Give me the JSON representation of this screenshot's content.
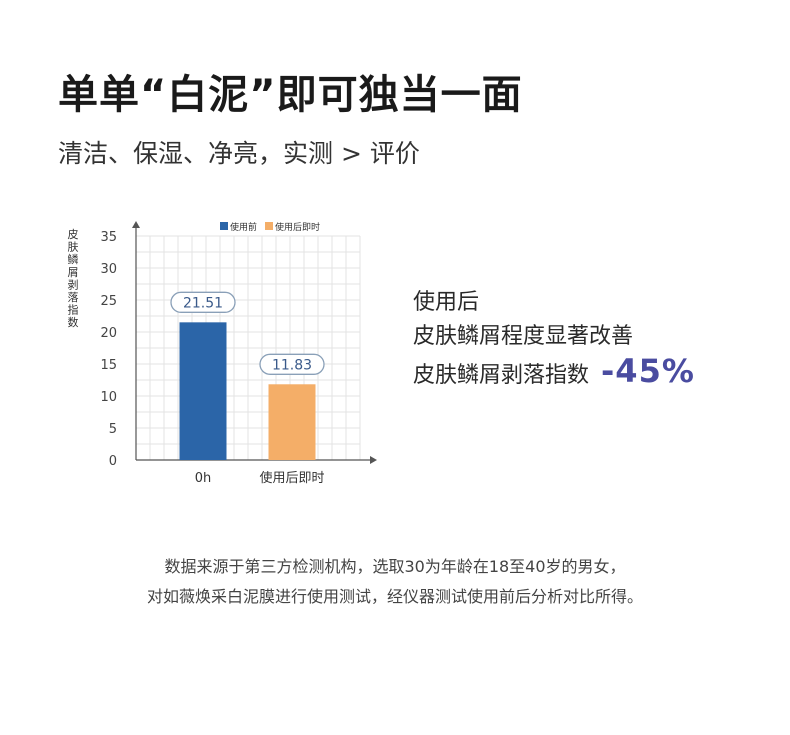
{
  "header": {
    "title": "单单“白泥”即可独当一面",
    "subtitle": "清洁、保湿、净亮，实测 > 评价"
  },
  "chart_data": {
    "type": "bar",
    "categories": [
      "0h",
      "使用后即时"
    ],
    "values": [
      21.51,
      11.83
    ],
    "value_labels": [
      "21.51",
      "11.83"
    ],
    "ylabel": "皮肤鳞屑剥落指数",
    "xlabel": "",
    "ylim": [
      0,
      35
    ],
    "yticks": [
      0,
      5,
      10,
      15,
      20,
      25,
      30,
      35
    ],
    "legend": [
      {
        "label": "使用前",
        "color": "#2b65a8"
      },
      {
        "label": "使用后即时",
        "color": "#f4ae68"
      }
    ],
    "legend_position": "top",
    "grid": true
  },
  "result": {
    "line1": "使用后",
    "line2": "皮肤鳞屑程度显著改善",
    "line3": "皮肤鳞屑剥落指数",
    "change": "-45%",
    "change_color": "#4a4ca0"
  },
  "footnote": {
    "line1": "数据来源于第三方检测机构，选取30为年龄在18至40岁的男女，",
    "line2": "对如薇焕采白泥膜进行使用测试，经仪器测试使用前后分析对比所得。"
  }
}
